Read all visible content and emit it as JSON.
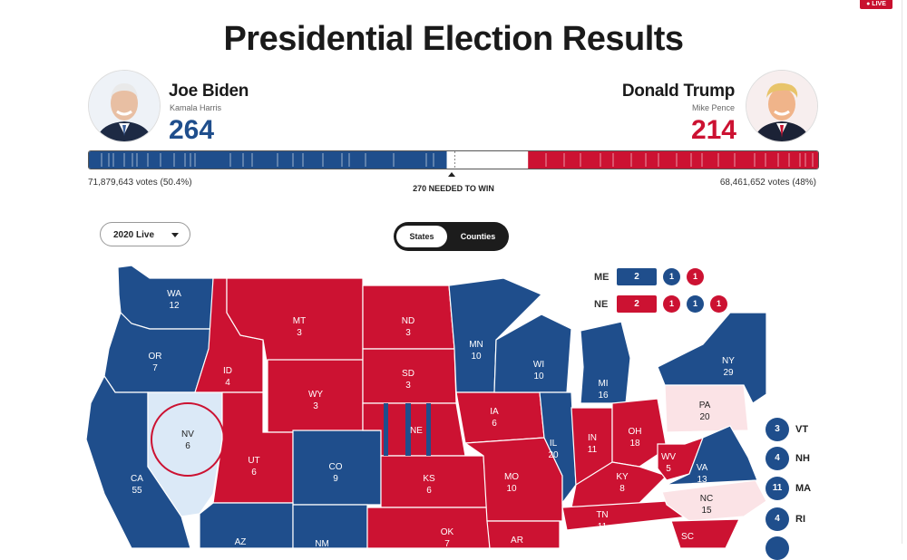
{
  "header": {
    "live_label": "● LIVE",
    "title": "Presidential Election Results"
  },
  "colors": {
    "democrat": "#1f4e8c",
    "republican": "#cc1232",
    "lean_dem": "#dbe9f7",
    "lean_rep": "#fbe3e6"
  },
  "candidates": {
    "left": {
      "name": "Joe Biden",
      "running_mate": "Kamala Harris",
      "electoral_votes": "264",
      "popular_votes": "71,879,643 votes (50.4%)",
      "photo_icon": "biden-portrait-icon"
    },
    "right": {
      "name": "Donald Trump",
      "running_mate": "Mike Pence",
      "electoral_votes": "214",
      "popular_votes": "68,461,652 votes (48%)",
      "photo_icon": "trump-portrait-icon"
    }
  },
  "progress": {
    "total_electoral_votes": 538,
    "dem_votes": 264,
    "rep_votes": 214,
    "needed_label": "270 NEEDED TO WIN"
  },
  "controls": {
    "dropdown_value": "2020 Live",
    "toggle_options": [
      "States",
      "Counties"
    ],
    "toggle_selected": "States"
  },
  "states": {
    "WA": {
      "abbr": "WA",
      "ev": "12"
    },
    "OR": {
      "abbr": "OR",
      "ev": "7"
    },
    "CA": {
      "abbr": "CA",
      "ev": "55"
    },
    "NV": {
      "abbr": "NV",
      "ev": "6"
    },
    "ID": {
      "abbr": "ID",
      "ev": "4"
    },
    "MT": {
      "abbr": "MT",
      "ev": "3"
    },
    "WY": {
      "abbr": "WY",
      "ev": "3"
    },
    "UT": {
      "abbr": "UT",
      "ev": "6"
    },
    "CO": {
      "abbr": "CO",
      "ev": "9"
    },
    "AZ": {
      "abbr": "AZ"
    },
    "NM": {
      "abbr": "NM"
    },
    "ND": {
      "abbr": "ND",
      "ev": "3"
    },
    "SD": {
      "abbr": "SD",
      "ev": "3"
    },
    "NE": {
      "abbr": "NE"
    },
    "KS": {
      "abbr": "KS",
      "ev": "6"
    },
    "OK": {
      "abbr": "OK",
      "ev": "7"
    },
    "MN": {
      "abbr": "MN",
      "ev": "10"
    },
    "IA": {
      "abbr": "IA",
      "ev": "6"
    },
    "MO": {
      "abbr": "MO",
      "ev": "10"
    },
    "AR": {
      "abbr": "AR"
    },
    "WI": {
      "abbr": "WI",
      "ev": "10"
    },
    "IL": {
      "abbr": "IL",
      "ev": "20"
    },
    "MI": {
      "abbr": "MI",
      "ev": "16"
    },
    "IN": {
      "abbr": "IN",
      "ev": "11"
    },
    "OH": {
      "abbr": "OH",
      "ev": "18"
    },
    "KY": {
      "abbr": "KY",
      "ev": "8"
    },
    "TN": {
      "abbr": "TN",
      "ev": "11"
    },
    "WV": {
      "abbr": "WV",
      "ev": "5"
    },
    "VA": {
      "abbr": "VA",
      "ev": "13"
    },
    "NC": {
      "abbr": "NC",
      "ev": "15"
    },
    "SC": {
      "abbr": "SC"
    },
    "PA": {
      "abbr": "PA",
      "ev": "20"
    },
    "NY": {
      "abbr": "NY",
      "ev": "29"
    },
    "ME": {
      "abbr": "ME"
    }
  },
  "split_states": {
    "ME": {
      "label": "ME",
      "statewide": "2",
      "districts": [
        "1",
        "1"
      ]
    },
    "NE": {
      "label": "NE",
      "statewide": "2",
      "districts": [
        "1",
        "1",
        "1"
      ]
    }
  },
  "small_states": [
    {
      "abbr": "VT",
      "ev": "3"
    },
    {
      "abbr": "NH",
      "ev": "4"
    },
    {
      "abbr": "MA",
      "ev": "11"
    },
    {
      "abbr": "RI",
      "ev": "4"
    }
  ]
}
